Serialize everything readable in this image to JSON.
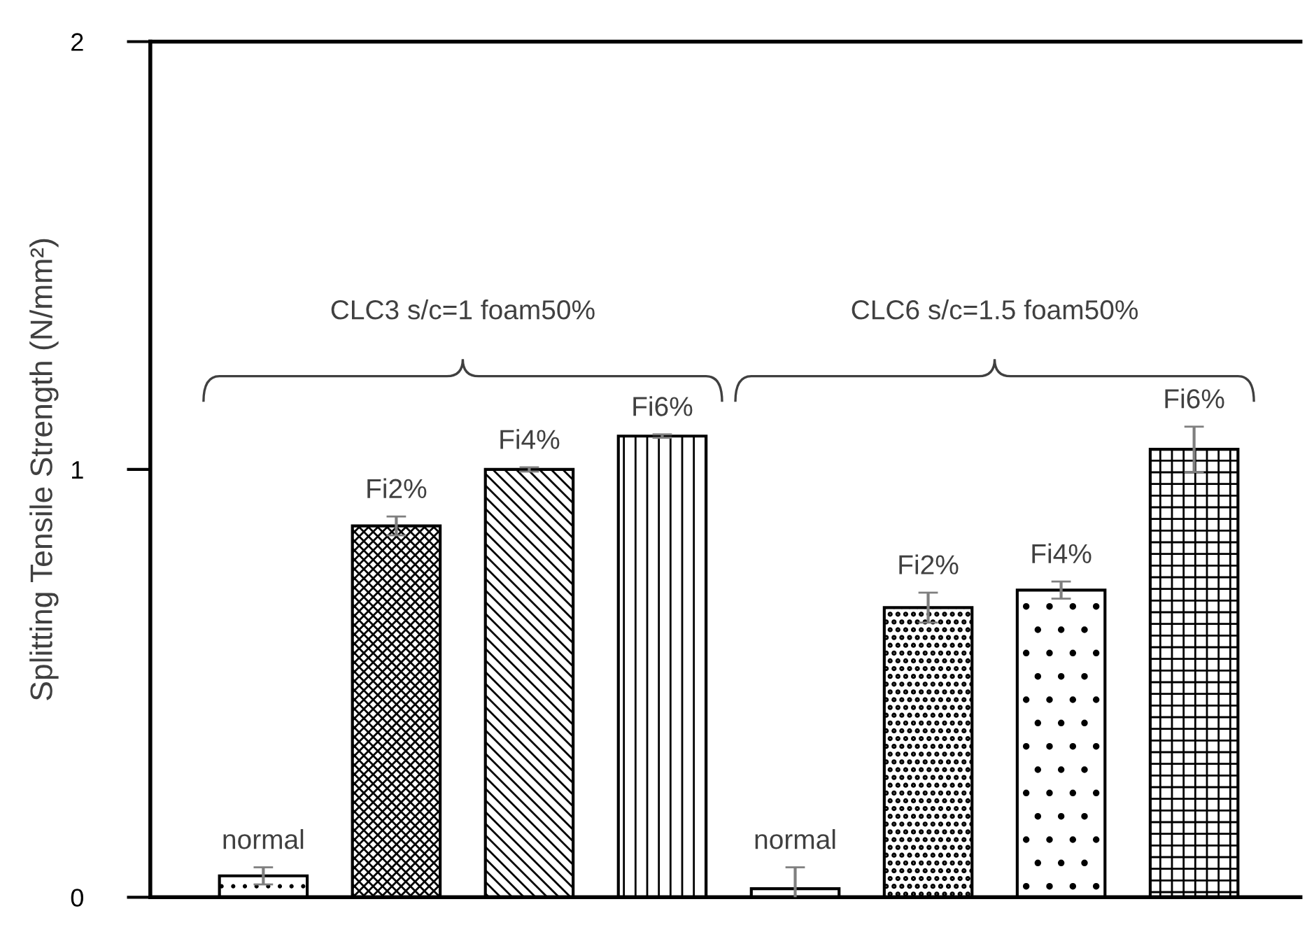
{
  "chart_data": {
    "type": "bar",
    "ylabel": "Splitting Tensile Strength (N/mm²)",
    "categories": [
      "normal",
      "Fi2%",
      "Fi4%",
      "Fi6%",
      "normal",
      "Fi2%",
      "Fi4%",
      "Fi6%"
    ],
    "values": [
      0.05,
      0.868,
      1.0,
      1.078,
      0.02,
      0.677,
      0.718,
      1.047
    ],
    "errors": [
      0.02,
      0.022,
      0.005,
      0.004,
      0.05,
      0.035,
      0.02,
      0.053
    ],
    "ylim": [
      0,
      2
    ],
    "yticks": [
      0,
      1,
      2
    ],
    "grid": false,
    "annotations": [
      "CLC3 s/c=1 foam50%",
      "CLC6 s/c=1.5 foam50%"
    ]
  }
}
